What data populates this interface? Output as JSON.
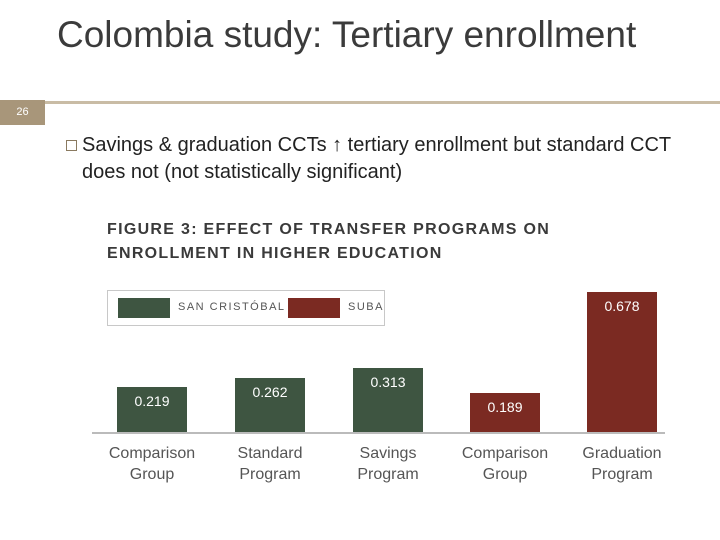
{
  "slide": {
    "number": "26",
    "title": "Colombia study: Tertiary enrollment",
    "bullet": "Savings & graduation CCTs ↑ tertiary enrollment but standard CCT does not (not statistically significant)"
  },
  "chart_data": {
    "type": "bar",
    "title": "FIGURE 3: EFFECT OF TRANSFER PROGRAMS ON ENROLLMENT IN HIGHER EDUCATION",
    "categories": [
      "Comparison Group",
      "Standard Program",
      "Savings Program",
      "Comparison Group",
      "Graduation Program"
    ],
    "series": [
      {
        "name": "SAN CRISTÓBAL",
        "color": "#3e5541",
        "values": [
          0.219,
          0.262,
          0.313,
          null,
          null
        ]
      },
      {
        "name": "SUBA",
        "color": "#7b2a22",
        "values": [
          null,
          null,
          null,
          0.189,
          0.678
        ]
      }
    ]
  }
}
